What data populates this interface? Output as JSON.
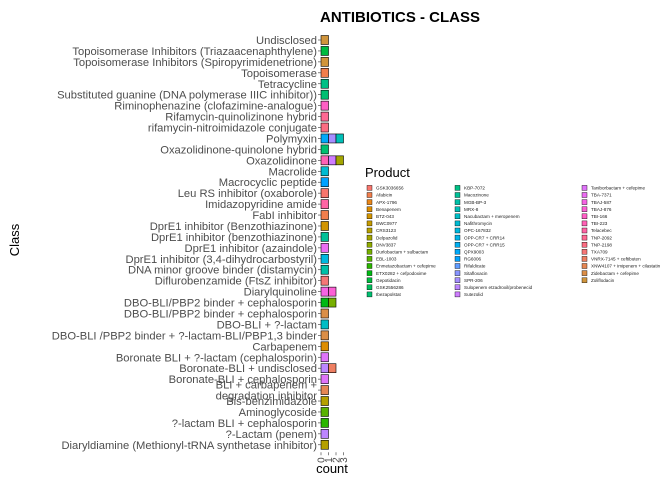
{
  "chart_data": {
    "type": "bar",
    "orientation": "horizontal",
    "stacked": true,
    "title": "ANTIBIOTICS - CLASS",
    "xlabel": "count",
    "ylabel": "Class",
    "x_ticks": [
      "0",
      "1",
      "2",
      "3"
    ],
    "xlim": [
      0,
      3
    ],
    "legend_title": "Product",
    "legend_position": "right",
    "grid": false,
    "categories": [
      "Undisclosed",
      "Topoisomerase Inhibitors (Triazaacenaphthylene)",
      "Topoisomerase Inhibitors (Spiropyrimidenetrione)",
      "Topoisomerase",
      "Tetracycline",
      "Substituted guanine (DNA polymerase IIIC inhibitor))",
      "Riminophenazine (clofazimine-analogue)",
      "Rifamycin-quinolizinone hybrid",
      "rifamycin-nitroimidazole conjugate",
      "Polymyxin",
      "Oxazolidinone-quinolone hybrid",
      "Oxazolidinone",
      "Macrolide",
      "Macrocyclic peptide",
      "Leu RS inhibitor (oxaborole)",
      "Imidazopyridine amide",
      "FabI inhibitor",
      "DprE1 inhibitor (Benzothiazinone)",
      "DprE1 inhibitor (benzothiazinone)",
      "DprE1 inhibitor (azaindole)",
      "DprE1 inhibitor (3,4-dihydrocarbostyril)",
      "DNA minor groove binder (distamycin)",
      "Diflurobenzamide (FtsZ inhibitor)",
      "Diarylquinoline",
      "DBO-BLI/PBP2 binder + cephalosporin",
      "DBO-BLI/PBP2 binder + cephalosporin",
      "DBO-BLI + ?-lactam",
      "DBO-BLI /PBP2 binder + ?-lactam-BLI/PBP1,3 binder",
      "Carbapenem",
      "Boronate BLI + ?-lactam (cephalosporin)",
      "Boronate-BLI + undisclosed",
      "Boronate-BLI + cephalosporin",
      "BLI + carbapenem + degradation inhibitor",
      "Bis-benzimidazole",
      "Aminoglycoside",
      "?-lactam BLI + cephalosporin",
      "?-Lactam (penem)",
      "Diaryldiamine (Methionyl-tRNA synthetase inhibitor)"
    ],
    "category_line_breaks": {
      "32": [
        "BLI + carbapenem +",
        "degradation inhibitor"
      ]
    },
    "products": [
      "GSK3036656",
      "Afabicin",
      "APX-1796",
      "Benapenem",
      "BTZ-043",
      "BWC0977",
      "CRS3123",
      "Delpazolid",
      "DNV3837",
      "Durlobactam + sulbactam",
      "EBL-1003",
      "Enmetazobactam + cefepime",
      "ETX0282 + cefpodoxime",
      "Gepotidacin",
      "GSK2556286",
      "Ibezapolstat",
      "KBP-7072",
      "Macozinone",
      "MGB-BP-3",
      "MRX-8",
      "Nacubactam + meropenem",
      "Nafithromycin",
      "OPC-167832",
      "OPP-CR7 + CRR14",
      "OPP-CR7 + CRR15",
      "QPX9003",
      "RG6006",
      "Rifaldicate",
      "Sitafloxacin",
      "SPR-206",
      "Sulopenem etzadroxil/probenecid",
      "Sutezolid",
      "Taniborbactam + cefepime",
      "TBA-7371",
      "TBAJ-587",
      "TBAJ-876",
      "TBI-166",
      "TBI-223",
      "Telacebec",
      "TNP-2092",
      "TNP-2198",
      "TXA709",
      "VNRX-7145 + ceftibuten",
      "XNW4107 + imipenem + cilastatin",
      "Zidebactam + cefepime",
      "Zoliflodacin"
    ],
    "product_colors": [
      "#F8766D",
      "#F17E4C",
      "#E8861A",
      "#DD8D00",
      "#D19400",
      "#C49A00",
      "#B5A000",
      "#A3A500",
      "#8FAA00",
      "#77AF00",
      "#59B300",
      "#2BB600",
      "#00B913",
      "#00BB3F",
      "#00BD5A",
      "#00BF71",
      "#00C085",
      "#00C097",
      "#00C0A8",
      "#00BFB7",
      "#00BDC5",
      "#00BBD2",
      "#00B8DE",
      "#00B4E8",
      "#00AFF1",
      "#00A9F9",
      "#00A2FF",
      "#619CFF",
      "#8895FF",
      "#A58EFF",
      "#BC86FF",
      "#CF7DFF",
      "#DF74F9",
      "#EB6DF1",
      "#F564E3",
      "#FC60D5",
      "#FF5FC5",
      "#FF61B5",
      "#FF64A4",
      "#FF6993",
      "#FB6D82",
      "#F57777",
      "#EE7F62",
      "#E58754",
      "#DB8E47",
      "#D0953C"
    ],
    "legend_columns": [
      16,
      16,
      14
    ],
    "values": [
      [
        {
          "p": "Zoliflodacin",
          "n": 1
        }
      ],
      [
        {
          "p": "Gepotidacin",
          "n": 1
        }
      ],
      [
        {
          "p": "Zoliflodacin",
          "n": 1
        }
      ],
      [
        {
          "p": "Afabicin",
          "n": 1
        }
      ],
      [
        {
          "p": "KBP-7072",
          "n": 1
        }
      ],
      [
        {
          "p": "Ibezapolstat",
          "n": 1
        }
      ],
      [
        {
          "p": "TBI-166",
          "n": 1
        }
      ],
      [
        {
          "p": "TNP-2092",
          "n": 1
        }
      ],
      [
        {
          "p": "TNP-2198",
          "n": 1
        }
      ],
      [
        {
          "p": "QPX9003",
          "n": 1
        },
        {
          "p": "SPR-206",
          "n": 1
        },
        {
          "p": "MRX-8",
          "n": 1
        }
      ],
      [
        {
          "p": "Ibezapolstat",
          "n": 1
        }
      ],
      [
        {
          "p": "TBI-223",
          "n": 1
        },
        {
          "p": "Sutezolid",
          "n": 1
        },
        {
          "p": "Delpazolid",
          "n": 1
        }
      ],
      [
        {
          "p": "Nafithromycin",
          "n": 1
        }
      ],
      [
        {
          "p": "RG6006",
          "n": 1
        }
      ],
      [
        {
          "p": "GSK3036656",
          "n": 1
        }
      ],
      [
        {
          "p": "Telacebec",
          "n": 1
        }
      ],
      [
        {
          "p": "Afabicin",
          "n": 1
        }
      ],
      [
        {
          "p": "BTZ-043",
          "n": 1
        }
      ],
      [
        {
          "p": "Macozinone",
          "n": 1
        }
      ],
      [
        {
          "p": "TBA-7371",
          "n": 1
        }
      ],
      [
        {
          "p": "OPC-167832",
          "n": 1
        }
      ],
      [
        {
          "p": "MGB-BP-3",
          "n": 1
        }
      ],
      [
        {
          "p": "TXA709",
          "n": 1
        }
      ],
      [
        {
          "p": "TBAJ-587",
          "n": 1
        },
        {
          "p": "TBAJ-876",
          "n": 1
        }
      ],
      [
        {
          "p": "ETX0282 + cefpodoxime",
          "n": 1
        },
        {
          "p": "Durlobactam + sulbactam",
          "n": 1
        }
      ],
      [
        {
          "p": "Zidebactam + cefepime",
          "n": 1
        }
      ],
      [
        {
          "p": "Nacubactam + meropenem",
          "n": 1
        }
      ],
      [
        {
          "p": "Zidebactam + cefepime",
          "n": 1
        }
      ],
      [
        {
          "p": "Benapenem",
          "n": 1
        }
      ],
      [
        {
          "p": "Taniborbactam + cefepime",
          "n": 1
        }
      ],
      [
        {
          "p": "Sulopenem etzadroxil/probenecid",
          "n": 1
        },
        {
          "p": "VNRX-7145 + ceftibuten",
          "n": 1
        }
      ],
      [
        {
          "p": "Taniborbactam + cefepime",
          "n": 1
        }
      ],
      [
        {
          "p": "XNW4107 + imipenem + cilastatin",
          "n": 1
        }
      ],
      [
        {
          "p": "CRS3123",
          "n": 1
        }
      ],
      [
        {
          "p": "EBL-1003",
          "n": 1
        }
      ],
      [
        {
          "p": "Enmetazobactam + cefepime",
          "n": 1
        }
      ],
      [
        {
          "p": "Sulopenem etzadroxil/probenecid",
          "n": 1
        }
      ],
      [
        {
          "p": "CRS3123",
          "n": 1
        }
      ]
    ]
  }
}
